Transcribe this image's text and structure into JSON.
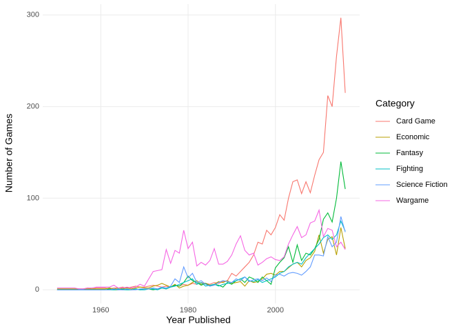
{
  "chart_data": {
    "type": "line",
    "x_label": "Year Published",
    "y_label": "Number of Games",
    "legend_title": "Category",
    "legend": "right",
    "grid": true,
    "x": [
      1950,
      1951,
      1952,
      1953,
      1954,
      1955,
      1956,
      1957,
      1958,
      1959,
      1960,
      1961,
      1962,
      1963,
      1964,
      1965,
      1966,
      1967,
      1968,
      1969,
      1970,
      1971,
      1972,
      1973,
      1974,
      1975,
      1976,
      1977,
      1978,
      1979,
      1980,
      1981,
      1982,
      1983,
      1984,
      1985,
      1986,
      1987,
      1988,
      1989,
      1990,
      1991,
      1992,
      1993,
      1994,
      1995,
      1996,
      1997,
      1998,
      1999,
      2000,
      2001,
      2002,
      2003,
      2004,
      2005,
      2006,
      2007,
      2008,
      2009,
      2010,
      2011,
      2012,
      2013,
      2014,
      2015,
      2016
    ],
    "xlim": [
      1946.7,
      2019.3
    ],
    "xticks": [
      1960,
      1980,
      2000
    ],
    "ylim": [
      -14.85,
      311.85
    ],
    "yticks": [
      0,
      100,
      200,
      300
    ],
    "series": [
      {
        "name": "Card Game",
        "color": "#F8766D",
        "values": [
          1,
          1,
          1,
          1,
          1,
          1,
          1,
          2,
          1,
          2,
          2,
          2,
          1,
          2,
          2,
          3,
          2,
          3,
          4,
          3,
          3,
          4,
          5,
          4,
          3,
          4,
          3,
          5,
          4,
          6,
          5,
          7,
          6,
          8,
          7,
          6,
          8,
          7,
          9,
          10,
          18,
          15,
          20,
          25,
          30,
          38,
          52,
          50,
          65,
          60,
          68,
          82,
          76,
          100,
          118,
          120,
          105,
          118,
          106,
          125,
          142,
          150,
          212,
          200,
          255,
          297,
          215
        ]
      },
      {
        "name": "Economic",
        "color": "#B79F00",
        "values": [
          1,
          1,
          1,
          1,
          1,
          1,
          1,
          1,
          1,
          1,
          1,
          1,
          2,
          1,
          2,
          1,
          2,
          1,
          2,
          3,
          2,
          2,
          4,
          5,
          7,
          5,
          3,
          6,
          2,
          4,
          5,
          8,
          10,
          6,
          7,
          5,
          6,
          9,
          8,
          10,
          7,
          8,
          9,
          4,
          10,
          8,
          9,
          12,
          17,
          18,
          16,
          20,
          20,
          24,
          28,
          30,
          25,
          32,
          35,
          42,
          60,
          40,
          55,
          58,
          38,
          68,
          45
        ]
      },
      {
        "name": "Fantasy",
        "color": "#00BA38",
        "values": [
          0,
          0,
          0,
          0,
          0,
          0,
          0,
          0,
          0,
          0,
          0,
          0,
          1,
          0,
          0,
          1,
          0,
          0,
          1,
          0,
          1,
          1,
          0,
          1,
          2,
          1,
          3,
          5,
          4,
          8,
          15,
          10,
          8,
          5,
          7,
          4,
          6,
          5,
          3,
          8,
          6,
          10,
          12,
          8,
          14,
          12,
          8,
          14,
          10,
          6,
          24,
          30,
          35,
          47,
          30,
          49,
          32,
          40,
          38,
          45,
          55,
          77,
          84,
          74,
          100,
          140,
          110
        ]
      },
      {
        "name": "Fighting",
        "color": "#00BFC4",
        "values": [
          0,
          0,
          0,
          0,
          0,
          0,
          0,
          0,
          0,
          0,
          0,
          0,
          0,
          0,
          1,
          0,
          0,
          0,
          1,
          0,
          0,
          1,
          1,
          0,
          2,
          1,
          3,
          4,
          6,
          8,
          10,
          12,
          6,
          8,
          4,
          5,
          6,
          4,
          6,
          7,
          8,
          10,
          12,
          14,
          10,
          9,
          11,
          8,
          10,
          12,
          14,
          18,
          20,
          25,
          28,
          30,
          28,
          35,
          40,
          45,
          50,
          57,
          60,
          55,
          60,
          75,
          64
        ]
      },
      {
        "name": "Science Fiction",
        "color": "#619CFF",
        "values": [
          0,
          0,
          0,
          0,
          0,
          0,
          0,
          0,
          0,
          0,
          0,
          0,
          0,
          1,
          0,
          0,
          1,
          0,
          0,
          1,
          1,
          1,
          2,
          1,
          3,
          2,
          4,
          12,
          8,
          25,
          13,
          18,
          8,
          10,
          6,
          4,
          5,
          8,
          10,
          9,
          8,
          12,
          10,
          14,
          9,
          11,
          12,
          10,
          13,
          9,
          16,
          17,
          15,
          18,
          19,
          18,
          16,
          20,
          25,
          38,
          38,
          37,
          58,
          47,
          52,
          80,
          63
        ]
      },
      {
        "name": "Wargame",
        "color": "#F564E3",
        "values": [
          2,
          2,
          2,
          2,
          2,
          1,
          1,
          2,
          2,
          3,
          3,
          3,
          3,
          5,
          2,
          2,
          3,
          2,
          3,
          6,
          4,
          12,
          20,
          21,
          22,
          44,
          29,
          43,
          40,
          65,
          45,
          52,
          26,
          30,
          27,
          32,
          45,
          28,
          28,
          31,
          38,
          50,
          59,
          43,
          38,
          40,
          27,
          30,
          34,
          36,
          33,
          32,
          36,
          50,
          60,
          69,
          57,
          60,
          73,
          75,
          87,
          58,
          67,
          65,
          47,
          52,
          44
        ]
      }
    ]
  }
}
